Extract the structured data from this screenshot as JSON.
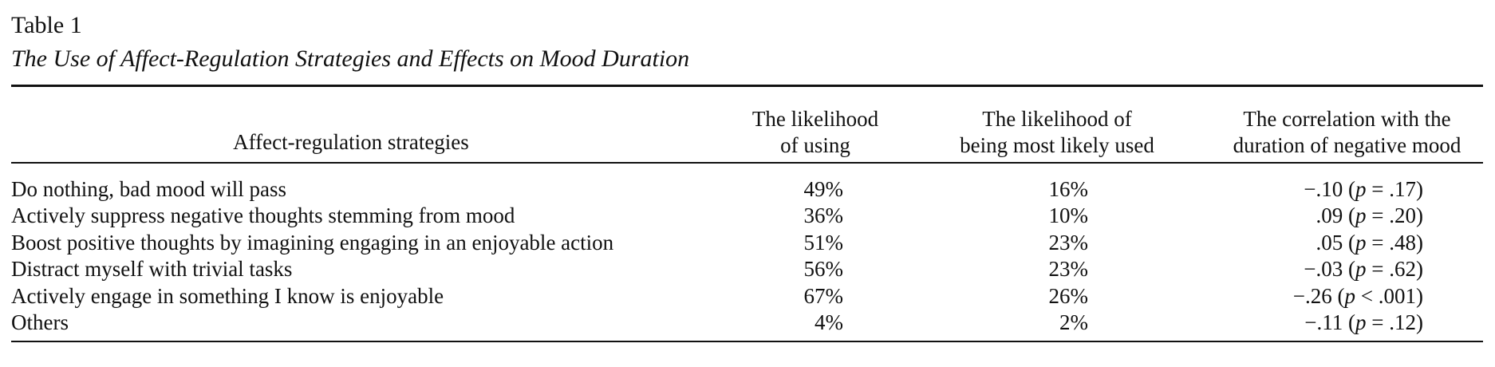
{
  "table": {
    "label": "Table 1",
    "caption": "The Use of Affect-Regulation Strategies and Effects on Mood Duration",
    "headers": {
      "strategy": "Affect-regulation strategies",
      "likelihood_using": [
        "The likelihood",
        "of using"
      ],
      "likelihood_most_used": [
        "The likelihood of",
        "being most likely used"
      ],
      "correlation": [
        "The correlation with the",
        "duration of negative mood"
      ]
    },
    "rows": [
      {
        "strategy": "Do nothing, bad mood will pass",
        "likelihood_using": "49%",
        "likelihood_most_used": "16%",
        "corr_value": "−.10",
        "corr_p_open": " (",
        "corr_p_symbol": "p",
        "corr_p_rest": " = .17)"
      },
      {
        "strategy": "Actively suppress negative thoughts stemming from mood",
        "likelihood_using": "36%",
        "likelihood_most_used": "10%",
        "corr_value": ".09",
        "corr_p_open": " (",
        "corr_p_symbol": "p",
        "corr_p_rest": " = .20)"
      },
      {
        "strategy": "Boost positive thoughts by imagining engaging in an enjoyable action",
        "likelihood_using": "51%",
        "likelihood_most_used": "23%",
        "corr_value": ".05",
        "corr_p_open": " (",
        "corr_p_symbol": "p",
        "corr_p_rest": " = .48)"
      },
      {
        "strategy": "Distract myself with trivial tasks",
        "likelihood_using": "56%",
        "likelihood_most_used": "23%",
        "corr_value": "−.03",
        "corr_p_open": " (",
        "corr_p_symbol": "p",
        "corr_p_rest": " = .62)"
      },
      {
        "strategy": "Actively engage in something I know is enjoyable",
        "likelihood_using": "67%",
        "likelihood_most_used": "26%",
        "corr_value": "−.26",
        "corr_p_open": " (",
        "corr_p_symbol": "p",
        "corr_p_rest": " < .001)"
      },
      {
        "strategy": "Others",
        "likelihood_using": "4%",
        "likelihood_most_used": "2%",
        "corr_value": "−.11",
        "corr_p_open": " (",
        "corr_p_symbol": "p",
        "corr_p_rest": " = .12)"
      }
    ]
  }
}
